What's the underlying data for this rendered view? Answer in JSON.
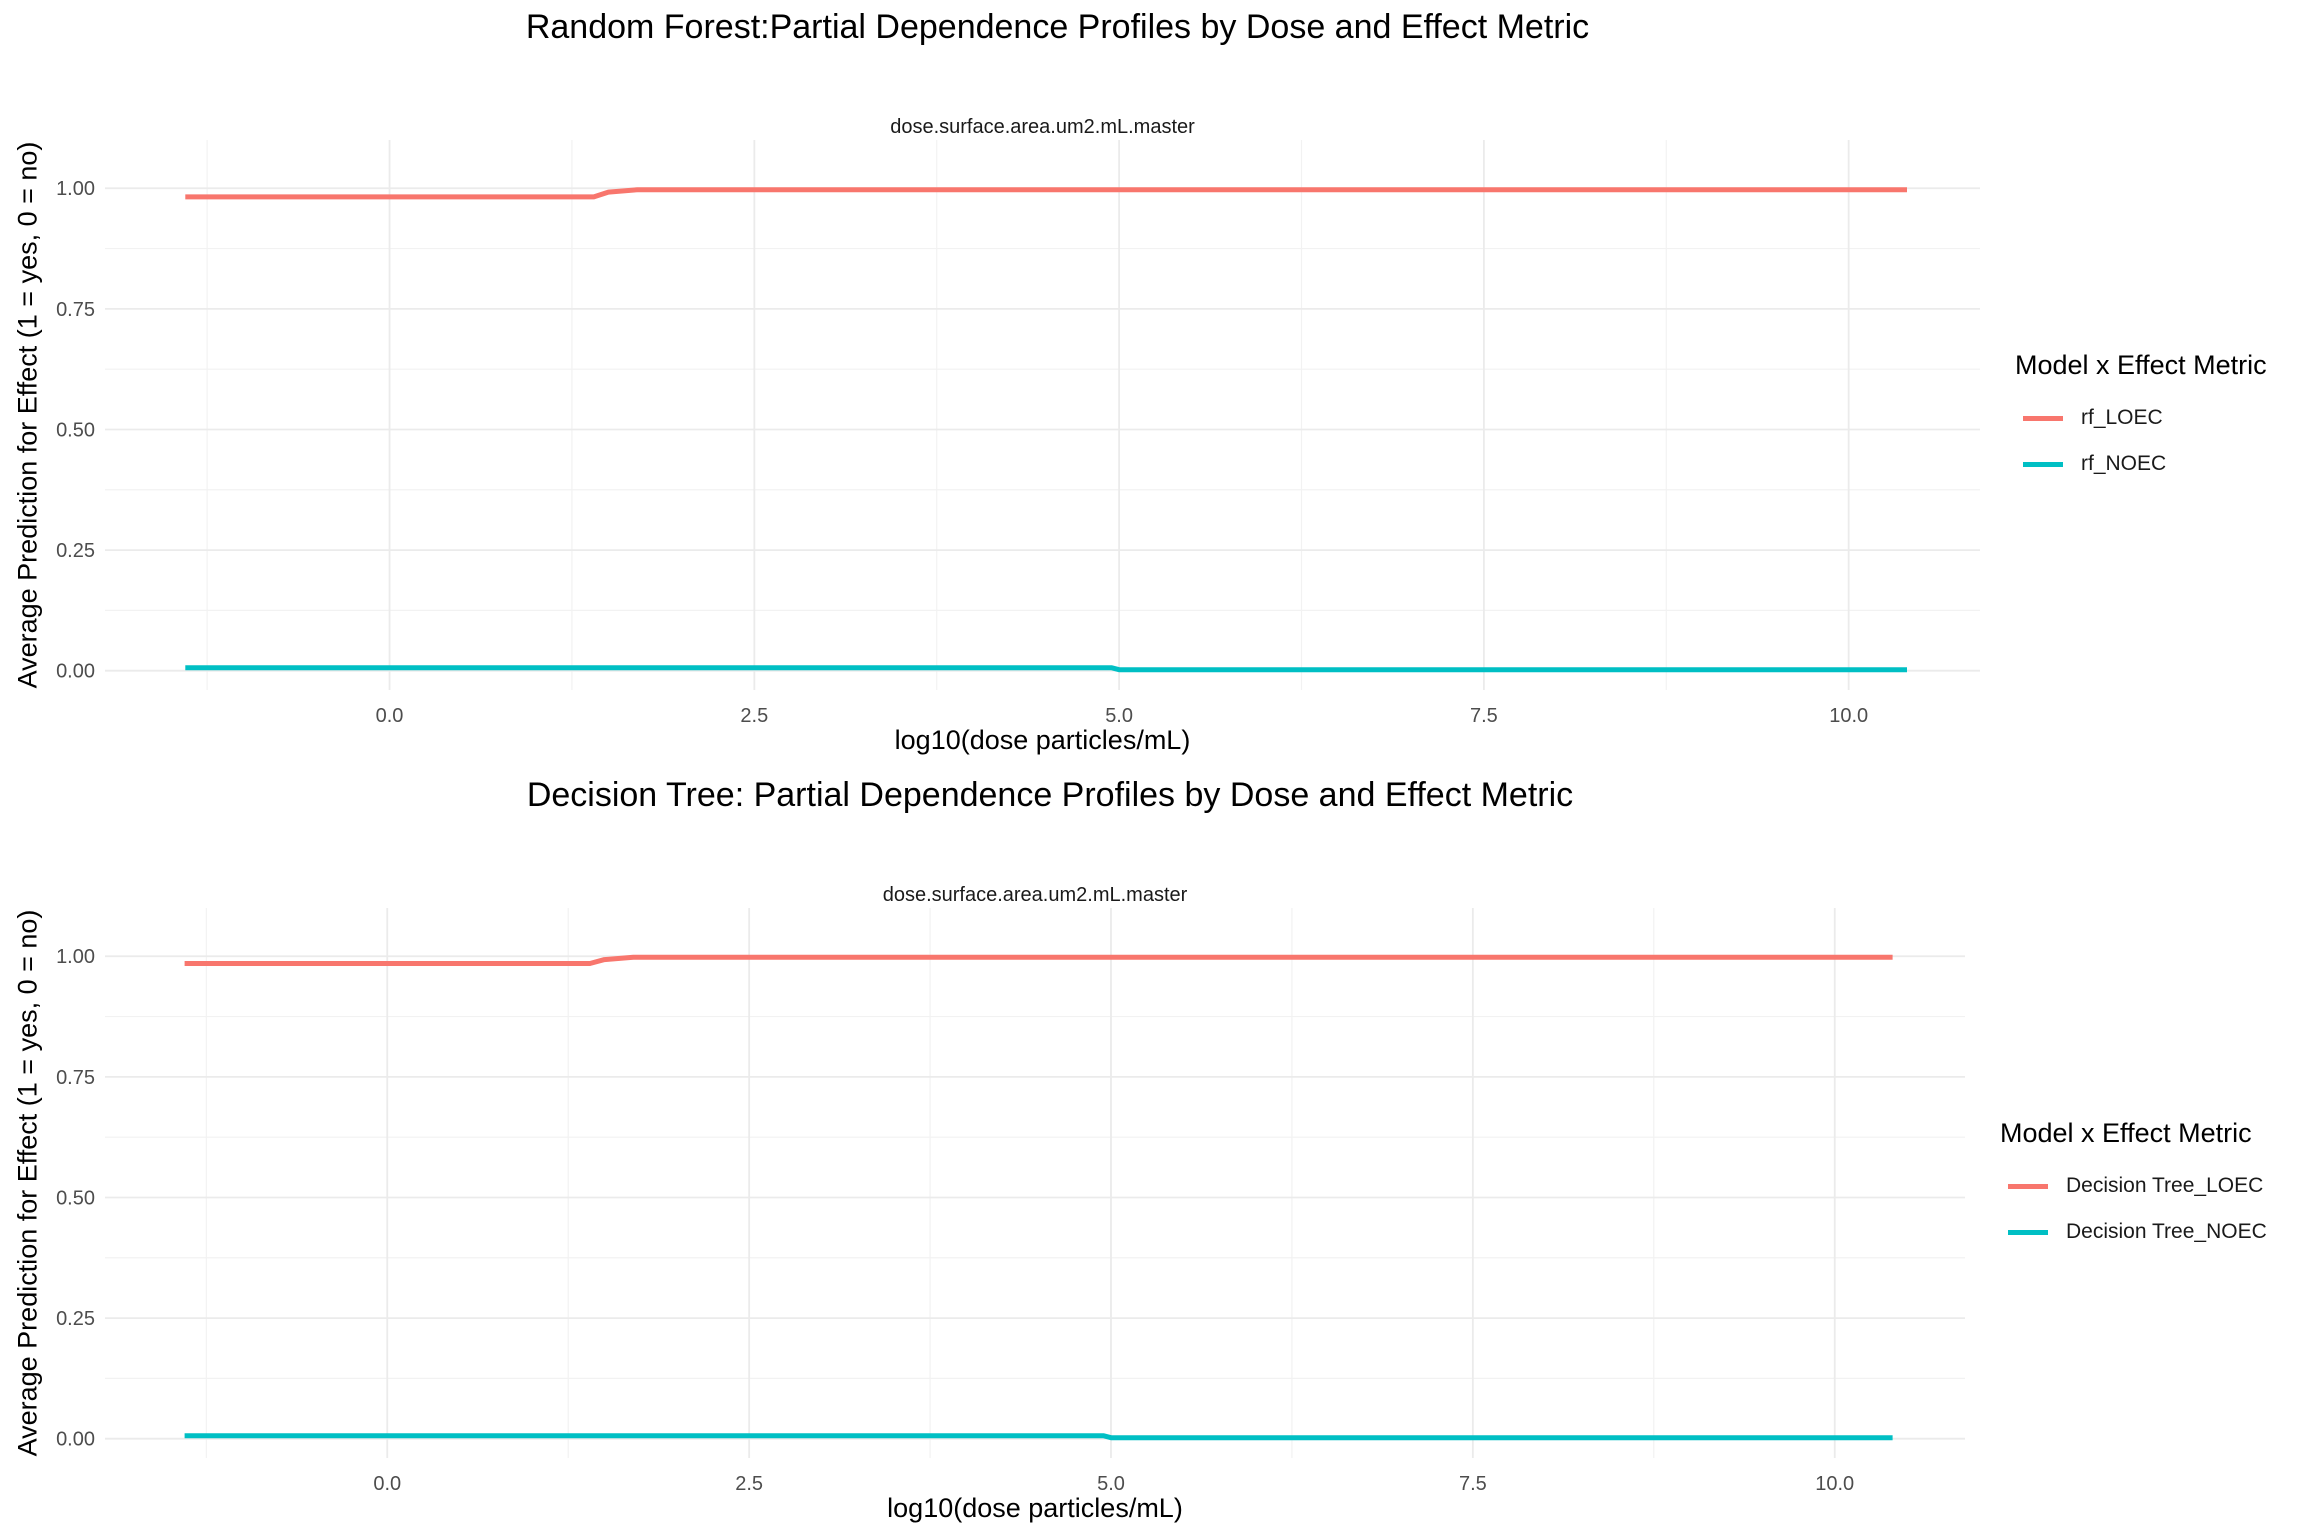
{
  "chart_data": [
    {
      "type": "line",
      "title": "Random Forest:Partial Dependence Profiles by Dose and Effect Metric",
      "facet_label": "dose.surface.area.um2.mL.master",
      "xlabel": "log10(dose particles/mL)",
      "ylabel": "Average Prediction for Effect (1 = yes, 0 = no)",
      "xlim": [
        -1.95,
        10.9
      ],
      "ylim": [
        -0.04,
        1.1
      ],
      "x_ticks": [
        "0.0",
        "2.5",
        "5.0",
        "7.5",
        "10.0"
      ],
      "y_ticks": [
        "0.00",
        "0.25",
        "0.50",
        "0.75",
        "1.00"
      ],
      "grid": true,
      "legend_title": "Model x Effect Metric",
      "legend_position": "right",
      "series": [
        {
          "name": "rf_LOEC",
          "color": "#F8766D",
          "x": [
            -1.4,
            1.4,
            1.5,
            1.7,
            10.4
          ],
          "y": [
            0.982,
            0.982,
            0.992,
            0.997,
            0.997
          ]
        },
        {
          "name": "rf_NOEC",
          "color": "#00BFC4",
          "x": [
            -1.4,
            4.95,
            5.0,
            10.4
          ],
          "y": [
            0.006,
            0.006,
            0.002,
            0.002
          ]
        }
      ]
    },
    {
      "type": "line",
      "title": "Decision Tree: Partial Dependence Profiles by Dose and Effect Metric",
      "facet_label": "dose.surface.area.um2.mL.master",
      "xlabel": "log10(dose particles/mL)",
      "ylabel": "Average Prediction for Effect (1 = yes, 0 = no)",
      "xlim": [
        -1.95,
        10.9
      ],
      "ylim": [
        -0.04,
        1.1
      ],
      "x_ticks": [
        "0.0",
        "2.5",
        "5.0",
        "7.5",
        "10.0"
      ],
      "y_ticks": [
        "0.00",
        "0.25",
        "0.50",
        "0.75",
        "1.00"
      ],
      "grid": true,
      "legend_title": "Model x Effect Metric",
      "legend_position": "right",
      "series": [
        {
          "name": "Decision Tree_LOEC",
          "color": "#F8766D",
          "x": [
            -1.4,
            1.4,
            1.5,
            1.7,
            10.4
          ],
          "y": [
            0.985,
            0.985,
            0.993,
            0.998,
            0.998
          ]
        },
        {
          "name": "Decision Tree_NOEC",
          "color": "#00BFC4",
          "x": [
            -1.4,
            4.95,
            5.0,
            10.4
          ],
          "y": [
            0.006,
            0.006,
            0.002,
            0.002
          ]
        }
      ]
    }
  ]
}
